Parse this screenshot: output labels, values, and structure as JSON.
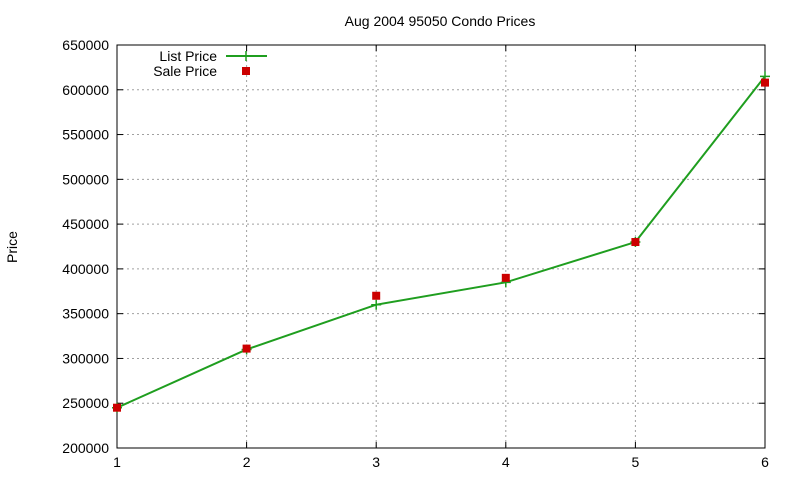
{
  "chart_data": {
    "type": "line",
    "title": "Aug 2004 95050 Condo Prices",
    "xlabel": "",
    "ylabel": "Price",
    "xlim": [
      1,
      6
    ],
    "ylim": [
      200000,
      650000
    ],
    "x_ticks": [
      "1",
      "2",
      "3",
      "4",
      "5",
      "6"
    ],
    "y_ticks": [
      "200000",
      "250000",
      "300000",
      "350000",
      "400000",
      "450000",
      "500000",
      "550000",
      "600000",
      "650000"
    ],
    "grid": true,
    "legend_position": "top-left",
    "x": [
      1,
      2,
      3,
      4,
      5,
      6
    ],
    "series": [
      {
        "name": "List Price",
        "style": "lines+points",
        "marker": "plus",
        "color": "#1f9e1f",
        "values": [
          245000,
          310000,
          360000,
          385000,
          430000,
          615000
        ]
      },
      {
        "name": "Sale Price",
        "style": "points",
        "marker": "square",
        "color": "#cc0000",
        "values": [
          245000,
          311000,
          370000,
          390000,
          430000,
          608000
        ]
      }
    ]
  }
}
